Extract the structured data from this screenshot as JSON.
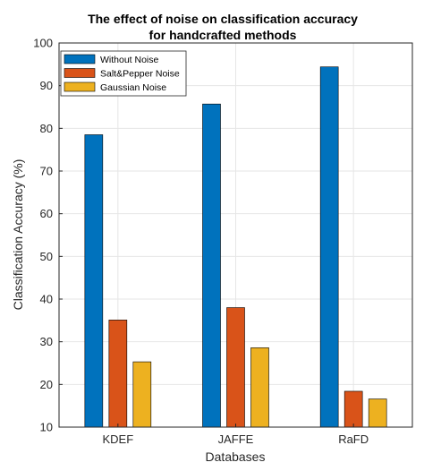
{
  "chart_data": {
    "type": "bar",
    "title": "The effect of noise on classification accuracy",
    "subtitle": "for handcrafted methods",
    "xlabel": "Databases",
    "ylabel": "Classification Accuracy (%)",
    "ylim": [
      10,
      100
    ],
    "yticks": [
      10,
      20,
      30,
      40,
      50,
      60,
      70,
      80,
      90,
      100
    ],
    "categories": [
      "KDEF",
      "JAFFE",
      "RaFD"
    ],
    "series": [
      {
        "name": "Without Noise",
        "color": "#0072bd",
        "values": [
          78.5,
          85.7,
          94.4
        ]
      },
      {
        "name": "Salt&Pepper Noise",
        "color": "#d95319",
        "values": [
          35.1,
          38.0,
          18.4
        ]
      },
      {
        "name": "Gaussian Noise",
        "color": "#edb120",
        "values": [
          25.3,
          28.6,
          16.6
        ]
      }
    ],
    "grid": true,
    "legend_position": "top-left"
  }
}
